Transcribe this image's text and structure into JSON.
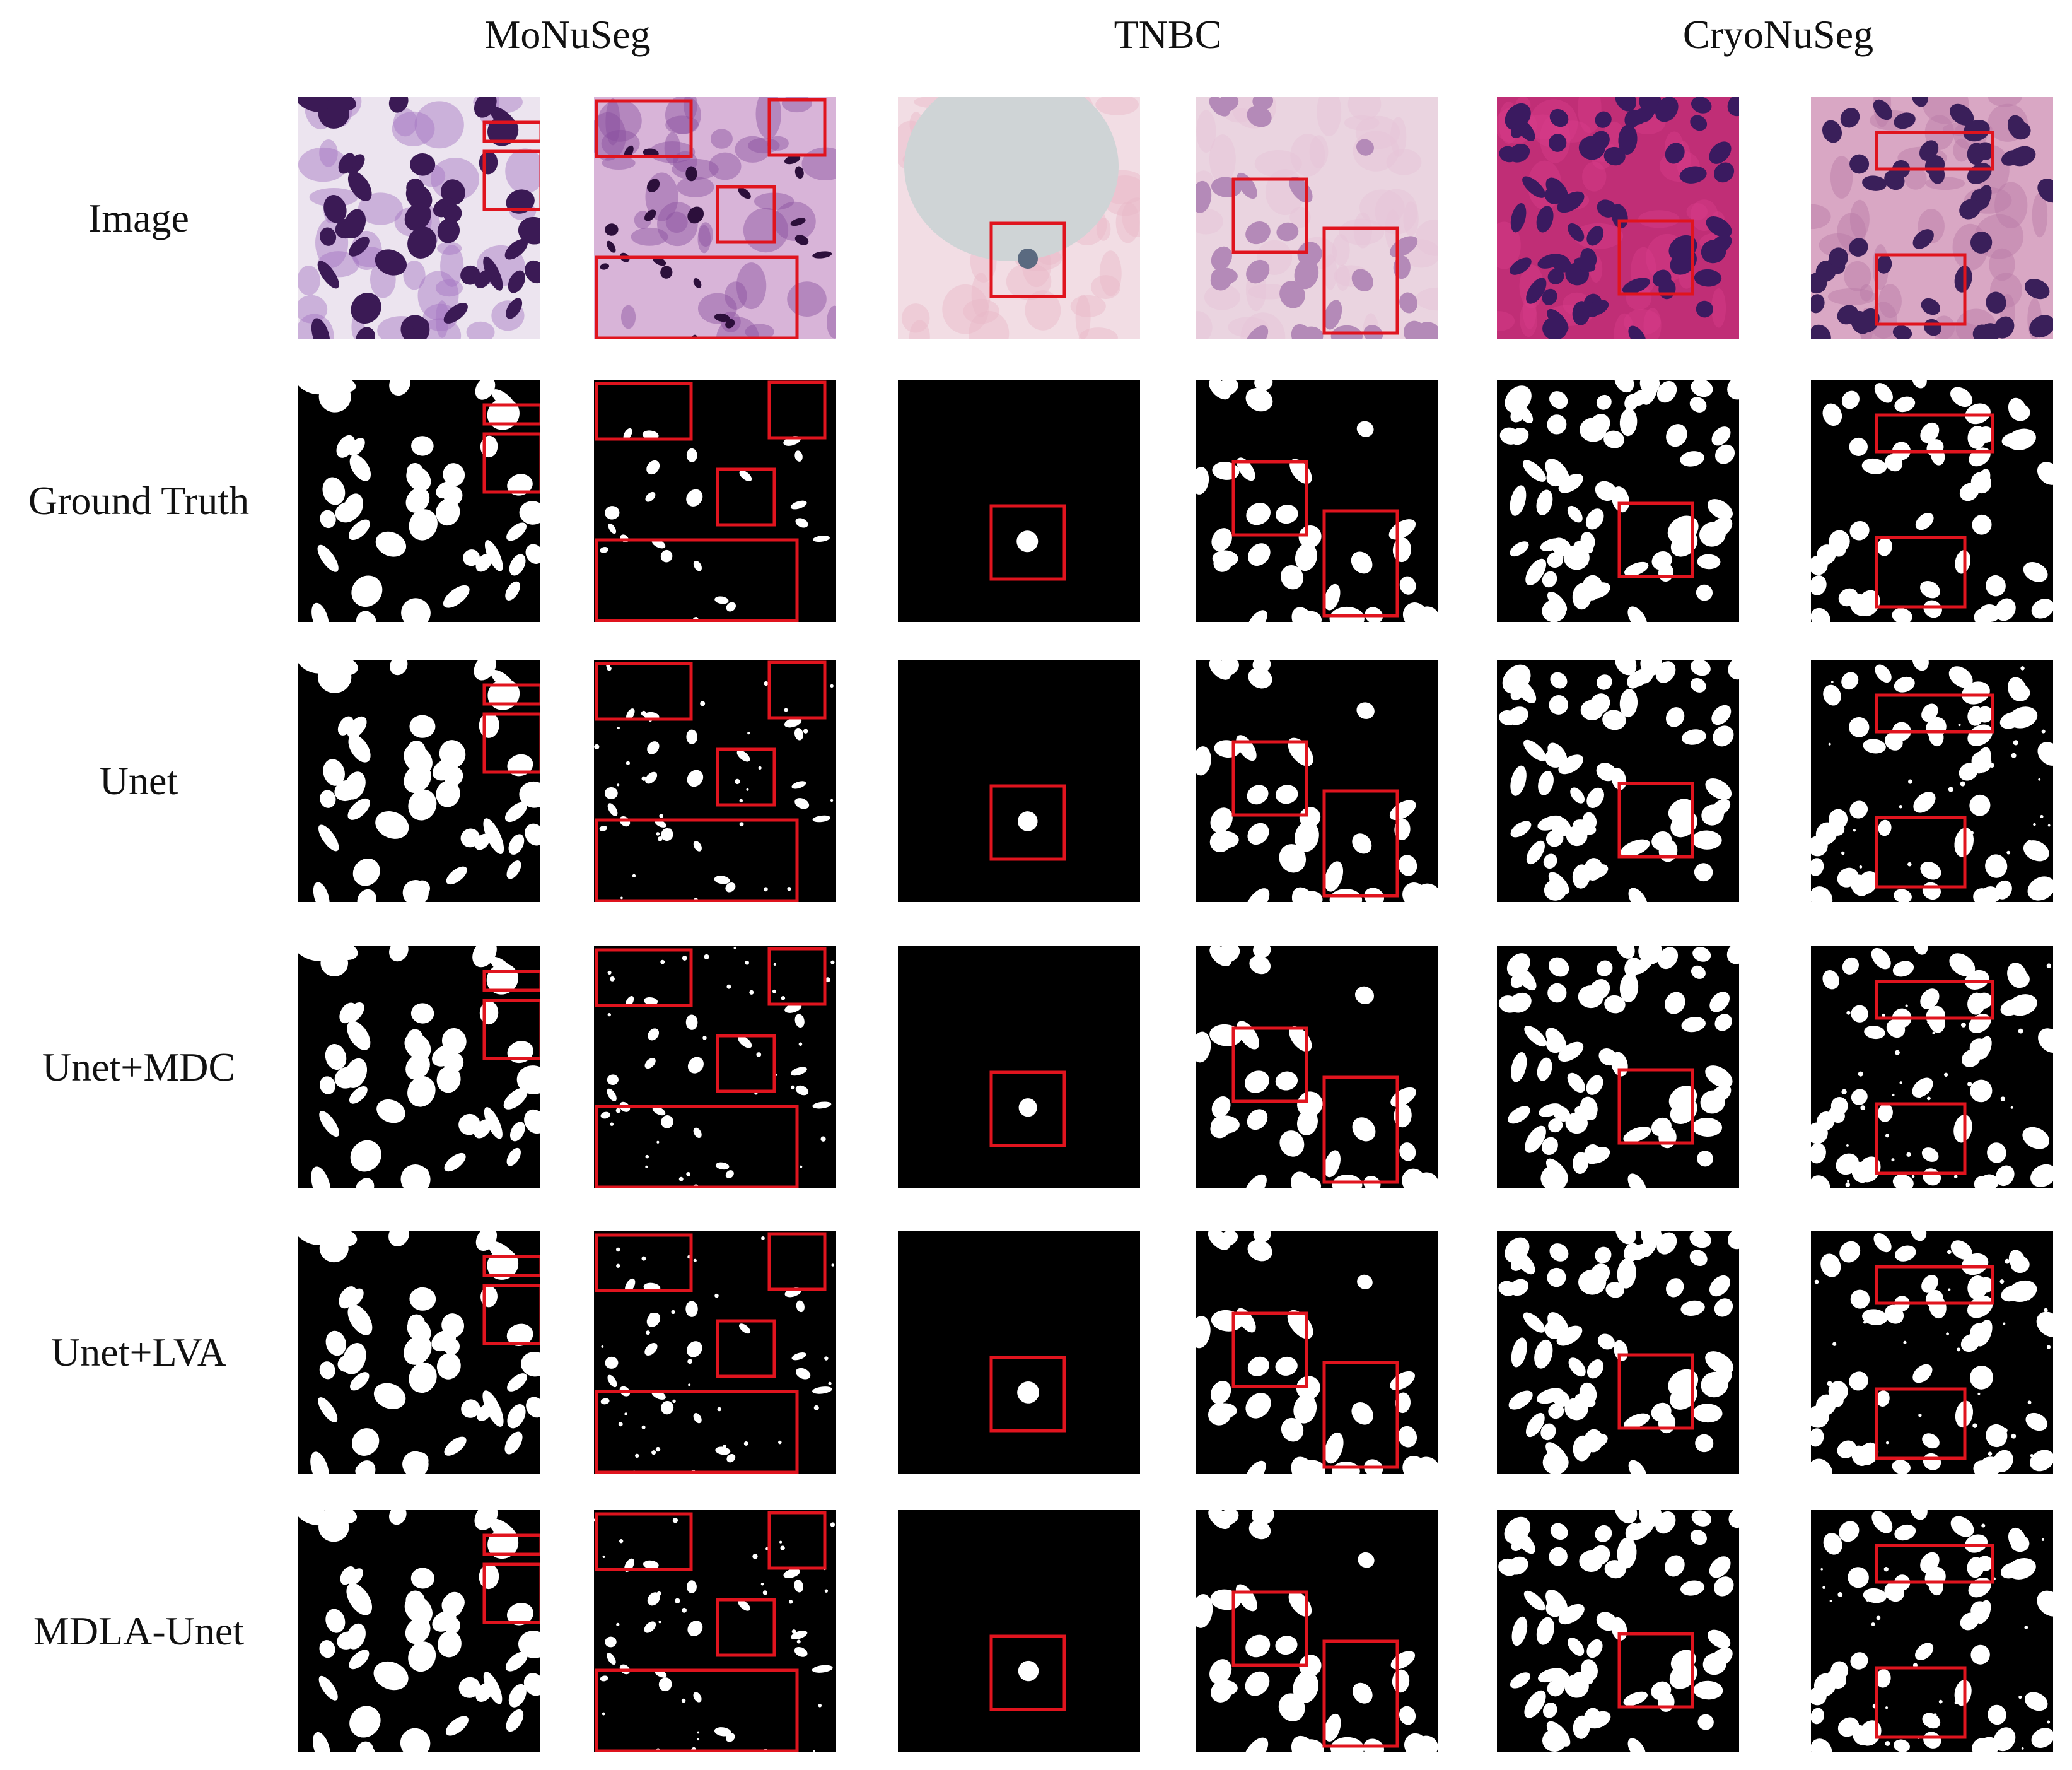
{
  "column_headers": [
    {
      "label": "MoNuSeg"
    },
    {
      "label": "TNBC"
    },
    {
      "label": "CryoNuSeg"
    }
  ],
  "row_labels": [
    {
      "label": "Image"
    },
    {
      "label": "Ground Truth"
    },
    {
      "label": "Unet"
    },
    {
      "label": "Unet+MDC"
    },
    {
      "label": "Unet+LVA"
    },
    {
      "label": "MDLA-Unet"
    }
  ],
  "colors": {
    "highlight_box": "#e0141e",
    "mask_background": "#000000",
    "mask_foreground": "#ffffff",
    "he_stain_purple": "#8a4fa0",
    "he_stain_pink": "#d83c8a"
  }
}
